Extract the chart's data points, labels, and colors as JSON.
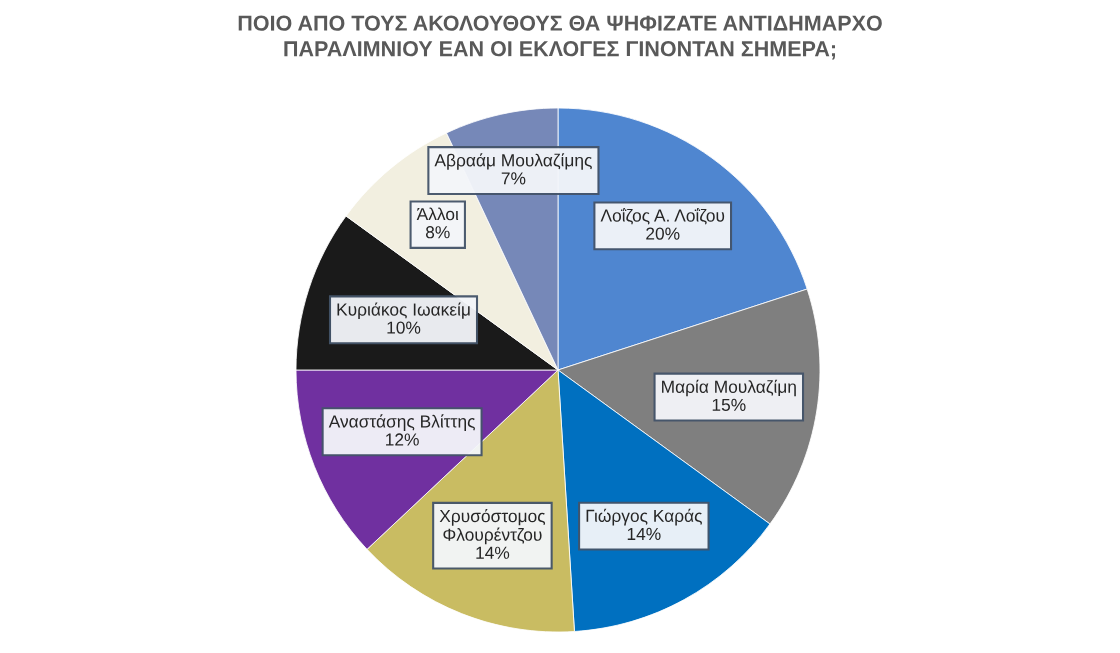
{
  "chart_data": {
    "type": "pie",
    "title": "ΠΟΙΟ ΑΠΟ ΤΟΥΣ ΑΚΟΛΟΥΘΟΥΣ ΘΑ ΨΗΦΙΖΑΤΕ ΑΝΤΙΔΗΜΑΡΧΟ ΠΑΡΑΛΙΜΝΙΟΥ ΕΑΝ ΟΙ ΕΚΛΟΓΕΣ ΓΙΝΟΝΤΑΝ ΣΗΜΕΡΑ;",
    "categories": [
      "Λοΐζος Α. Λοΐζου",
      "Μαρία Μουλαζίμη",
      "Γιώργος Καράς",
      "Χρυσόστομος Φλουρέντζου",
      "Αναστάσης Βλίττης",
      "Κυριάκος Ιωακείμ",
      "Άλλοι",
      "Αβραάμ Μουλαζίμης"
    ],
    "values": [
      20,
      15,
      14,
      14,
      12,
      10,
      8,
      7
    ],
    "value_labels": [
      "20%",
      "15%",
      "14%",
      "14%",
      "12%",
      "10%",
      "8%",
      "7%"
    ],
    "colors": [
      "#4f86d0",
      "#7f7f7f",
      "#0070c0",
      "#c9bc62",
      "#7030a0",
      "#1a1a1a",
      "#f2efe0",
      "#7688b8"
    ]
  }
}
